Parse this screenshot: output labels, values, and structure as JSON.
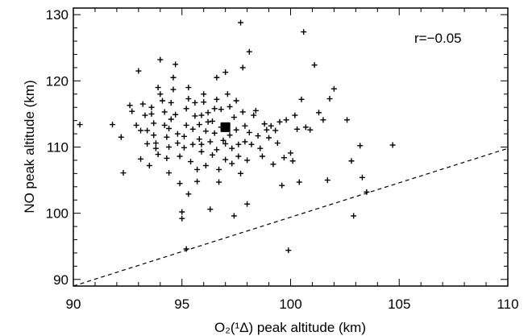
{
  "chart_data": {
    "type": "scatter",
    "xlabel": "O₂(¹Δ) peak altitude (km)",
    "ylabel": "NO peak altitude (km)",
    "xlim": [
      90,
      110
    ],
    "ylim": [
      89,
      131
    ],
    "x_ticks": [
      "90",
      "95",
      "100",
      "105",
      "110"
    ],
    "y_ticks": [
      "90",
      "100",
      "110",
      "120",
      "130"
    ],
    "annotation": "r=−0.05",
    "grid": false,
    "reference_line": {
      "style": "dashed",
      "from": [
        90,
        89
      ],
      "to": [
        110,
        109.8
      ]
    },
    "mean_marker": {
      "x": 97.0,
      "y": 113.0,
      "marker": "filled-square"
    },
    "series": [
      {
        "marker": "plus",
        "points": [
          [
            90.3,
            113.4
          ],
          [
            91.8,
            113.4
          ],
          [
            92.2,
            111.5
          ],
          [
            92.3,
            106.1
          ],
          [
            92.6,
            116.3
          ],
          [
            92.7,
            115.4
          ],
          [
            92.9,
            113.3
          ],
          [
            93.0,
            121.5
          ],
          [
            93.1,
            108.2
          ],
          [
            93.2,
            116.5
          ],
          [
            93.3,
            114.8
          ],
          [
            93.4,
            112.5
          ],
          [
            93.4,
            110.5
          ],
          [
            93.5,
            107.2
          ],
          [
            93.6,
            116.0
          ],
          [
            93.6,
            115.0
          ],
          [
            93.7,
            113.6
          ],
          [
            93.7,
            111.8
          ],
          [
            93.8,
            110.6
          ],
          [
            93.8,
            109.8
          ],
          [
            93.9,
            108.9
          ],
          [
            93.9,
            119.0
          ],
          [
            94.0,
            123.2
          ],
          [
            94.0,
            118.0
          ],
          [
            94.1,
            117.0
          ],
          [
            94.2,
            115.3
          ],
          [
            94.2,
            113.3
          ],
          [
            94.3,
            111.5
          ],
          [
            94.3,
            108.3
          ],
          [
            94.4,
            110.0
          ],
          [
            94.4,
            112.8
          ],
          [
            94.5,
            114.2
          ],
          [
            94.5,
            116.7
          ],
          [
            94.6,
            118.7
          ],
          [
            94.6,
            120.5
          ],
          [
            94.7,
            122.5
          ],
          [
            94.7,
            114.9
          ],
          [
            94.8,
            112.0
          ],
          [
            94.8,
            110.6
          ],
          [
            94.9,
            108.6
          ],
          [
            94.9,
            104.5
          ],
          [
            95.0,
            99.2
          ],
          [
            95.0,
            100.2
          ],
          [
            95.1,
            109.9
          ],
          [
            95.1,
            111.6
          ],
          [
            95.2,
            113.3
          ],
          [
            95.2,
            115.8
          ],
          [
            95.3,
            117.3
          ],
          [
            95.3,
            119.0
          ],
          [
            95.3,
            102.9
          ],
          [
            95.4,
            107.8
          ],
          [
            95.5,
            110.4
          ],
          [
            95.5,
            112.7
          ],
          [
            95.6,
            114.7
          ],
          [
            95.6,
            116.7
          ],
          [
            95.7,
            106.6
          ],
          [
            95.7,
            104.8
          ],
          [
            95.8,
            113.4
          ],
          [
            95.8,
            111.2
          ],
          [
            95.9,
            109.3
          ],
          [
            95.9,
            114.8
          ],
          [
            96.0,
            116.8
          ],
          [
            96.0,
            118.0
          ],
          [
            96.1,
            112.4
          ],
          [
            96.1,
            107.2
          ],
          [
            96.2,
            115.2
          ],
          [
            96.2,
            113.8
          ],
          [
            96.3,
            110.8
          ],
          [
            96.3,
            100.6
          ],
          [
            96.4,
            108.8
          ],
          [
            96.4,
            113.9
          ],
          [
            96.5,
            115.8
          ],
          [
            96.5,
            112.1
          ],
          [
            96.6,
            109.6
          ],
          [
            96.6,
            117.2
          ],
          [
            96.7,
            106.6
          ],
          [
            96.7,
            104.7
          ],
          [
            96.8,
            115.7
          ],
          [
            96.8,
            113.0
          ],
          [
            96.9,
            111.0
          ],
          [
            97.0,
            110.5
          ],
          [
            97.0,
            121.3
          ],
          [
            97.0,
            108.1
          ],
          [
            97.1,
            118.0
          ],
          [
            97.1,
            113.3
          ],
          [
            97.2,
            116.1
          ],
          [
            97.2,
            111.8
          ],
          [
            97.3,
            109.8
          ],
          [
            97.3,
            107.5
          ],
          [
            97.4,
            99.6
          ],
          [
            97.4,
            114.5
          ],
          [
            97.5,
            117.0
          ],
          [
            97.5,
            112.6
          ],
          [
            97.6,
            110.4
          ],
          [
            97.6,
            108.6
          ],
          [
            97.7,
            106.0
          ],
          [
            97.7,
            128.8
          ],
          [
            97.8,
            122.0
          ],
          [
            97.8,
            115.3
          ],
          [
            97.9,
            113.2
          ],
          [
            97.9,
            110.8
          ],
          [
            98.0,
            108.0
          ],
          [
            98.0,
            101.4
          ],
          [
            98.1,
            124.4
          ],
          [
            98.1,
            112.2
          ],
          [
            98.2,
            110.4
          ],
          [
            98.3,
            114.8
          ],
          [
            98.4,
            115.5
          ],
          [
            98.5,
            111.7
          ],
          [
            98.6,
            109.8
          ],
          [
            98.7,
            108.6
          ],
          [
            98.8,
            113.5
          ],
          [
            98.9,
            112.6
          ],
          [
            99.0,
            111.4
          ],
          [
            99.1,
            113.2
          ],
          [
            99.2,
            107.4
          ],
          [
            99.3,
            112.5
          ],
          [
            99.4,
            110.6
          ],
          [
            99.5,
            113.8
          ],
          [
            99.6,
            104.2
          ],
          [
            99.7,
            108.4
          ],
          [
            99.8,
            114.1
          ],
          [
            99.9,
            94.4
          ],
          [
            100.0,
            109.1
          ],
          [
            100.1,
            107.9
          ],
          [
            100.2,
            114.8
          ],
          [
            100.3,
            112.7
          ],
          [
            100.4,
            104.7
          ],
          [
            100.5,
            117.2
          ],
          [
            100.6,
            127.4
          ],
          [
            100.7,
            113.0
          ],
          [
            100.9,
            112.6
          ],
          [
            101.1,
            122.4
          ],
          [
            101.3,
            115.2
          ],
          [
            101.5,
            114.1
          ],
          [
            101.7,
            105.0
          ],
          [
            101.8,
            117.3
          ],
          [
            102.0,
            118.8
          ],
          [
            102.6,
            114.1
          ],
          [
            102.8,
            107.9
          ],
          [
            102.9,
            99.6
          ],
          [
            103.2,
            110.2
          ],
          [
            103.3,
            105.4
          ],
          [
            103.5,
            103.2
          ],
          [
            104.7,
            110.3
          ],
          [
            95.2,
            94.6
          ],
          [
            94.4,
            106.1
          ],
          [
            96.6,
            120.5
          ],
          [
            93.1,
            112.5
          ],
          [
            95.9,
            110.4
          ]
        ]
      }
    ]
  }
}
